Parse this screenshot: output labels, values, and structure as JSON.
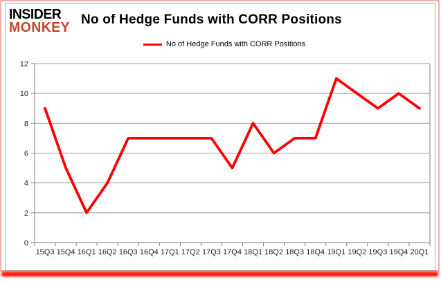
{
  "logo": {
    "line1": "INSIDER",
    "line2": "MONKEY"
  },
  "header": {
    "title": "No of Hedge Funds with CORR Positions"
  },
  "legend": {
    "label": "No of Hedge Funds with CORR Positions"
  },
  "colors": {
    "line": "#ff0000",
    "logo_red": "#c7432d",
    "grid": "#9a9a9a",
    "axis": "#808080",
    "card_border": "#f2afa9",
    "bottom_glow": "#ff1200",
    "text": "#000000"
  },
  "chart_data": {
    "type": "line",
    "title": "No of Hedge Funds with CORR Positions",
    "series_name": "No of Hedge Funds with CORR Positions",
    "categories": [
      "15Q3",
      "15Q4",
      "16Q1",
      "16Q2",
      "16Q3",
      "16Q4",
      "17Q1",
      "17Q2",
      "17Q3",
      "17Q4",
      "18Q1",
      "18Q2",
      "18Q3",
      "18Q4",
      "19Q1",
      "19Q2",
      "19Q3",
      "19Q4",
      "20Q1"
    ],
    "values": [
      9,
      5,
      2,
      4,
      7,
      7,
      7,
      7,
      7,
      5,
      8,
      6,
      7,
      7,
      11,
      10,
      9,
      10,
      9
    ],
    "xlabel": "",
    "ylabel": "",
    "ylim": [
      0,
      12
    ],
    "yticks": [
      0,
      2,
      4,
      6,
      8,
      10,
      12
    ],
    "grid": true,
    "legend_position": "top-center",
    "line_color": "#ff0000"
  }
}
